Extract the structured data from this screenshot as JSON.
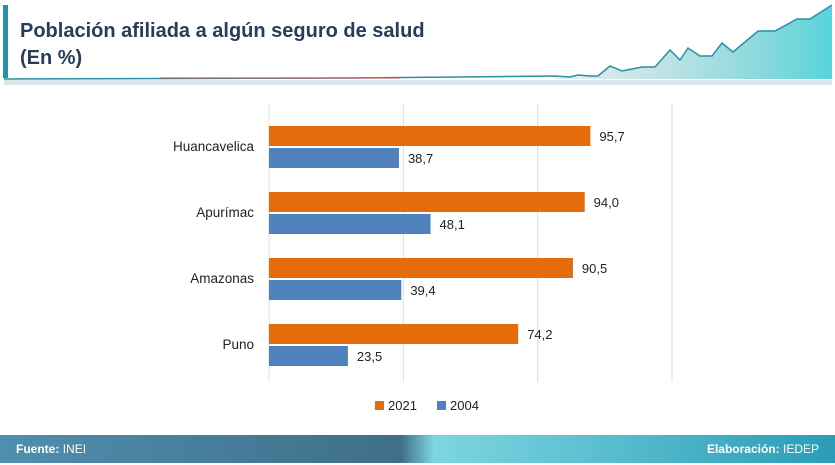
{
  "title": {
    "line1": "Población afiliada a algún seguro de salud",
    "line2": "(En %)"
  },
  "footer": {
    "source_label": "Fuente:",
    "source": "INEI",
    "credit_label": "Elaboración:",
    "credit": "IEDEP"
  },
  "colors": {
    "2021": "#e46c0a",
    "2004": "#4f81bd"
  },
  "chart_data": {
    "type": "bar",
    "orientation": "horizontal",
    "categories": [
      "Huancavelica",
      "Apurímac",
      "Amazonas",
      "Puno"
    ],
    "series": [
      {
        "name": "2021",
        "values": [
          95.7,
          94.0,
          90.5,
          74.2
        ],
        "labels": [
          "95,7",
          "94,0",
          "90,5",
          "74,2"
        ]
      },
      {
        "name": "2004",
        "values": [
          38.7,
          48.1,
          39.4,
          23.5
        ],
        "labels": [
          "38,7",
          "48,1",
          "39,4",
          "23,5"
        ]
      }
    ],
    "xlim": [
      0,
      120
    ],
    "grid": true,
    "legend": "bottom"
  }
}
